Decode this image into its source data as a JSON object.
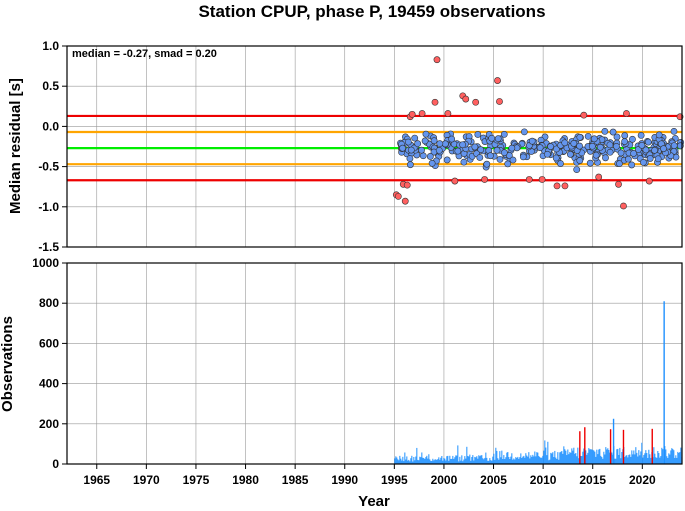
{
  "chart_data": [
    {
      "type": "scatter",
      "title": "Station CPUP, phase P, 19459 observations",
      "ylabel": "Median residual [s]",
      "xlim": [
        1962,
        2024
      ],
      "ylim": [
        -1.5,
        1.0
      ],
      "yticks": [
        "1.0",
        "0.5",
        "0.0",
        "-0.5",
        "-1.0",
        "-1.5"
      ],
      "ytick_values": [
        1.0,
        0.5,
        0.0,
        -0.5,
        -1.0,
        -1.5
      ],
      "annotation": "median = -0.27, smad = 0.20",
      "grid": true,
      "reference_lines": [
        {
          "y": -0.27,
          "color": "#00ee00"
        },
        {
          "y": -0.07,
          "color": "#ffa500"
        },
        {
          "y": -0.47,
          "color": "#ffa500"
        },
        {
          "y": 0.13,
          "color": "#ee0000"
        },
        {
          "y": -0.67,
          "color": "#ee0000"
        }
      ],
      "colors": {
        "inlier": "#6495ed",
        "outlier": "#ff6060",
        "outline": "#333333"
      },
      "outliers": [
        [
          1995.2,
          -0.85
        ],
        [
          1995.4,
          -0.87
        ],
        [
          1995.9,
          -0.72
        ],
        [
          1996.1,
          -0.93
        ],
        [
          1996.3,
          -0.73
        ],
        [
          1996.6,
          0.12
        ],
        [
          1996.8,
          0.15
        ],
        [
          1997.8,
          0.16
        ],
        [
          1999.1,
          0.3
        ],
        [
          1999.3,
          0.83
        ],
        [
          2000.4,
          0.16
        ],
        [
          2001.1,
          -0.68
        ],
        [
          2001.9,
          0.38
        ],
        [
          2002.2,
          0.34
        ],
        [
          2003.2,
          0.3
        ],
        [
          2004.1,
          -0.66
        ],
        [
          2005.4,
          0.57
        ],
        [
          2005.6,
          0.31
        ],
        [
          2008.6,
          -0.66
        ],
        [
          2009.9,
          -0.66
        ],
        [
          2011.4,
          -0.74
        ],
        [
          2012.2,
          -0.74
        ],
        [
          2014.1,
          0.14
        ],
        [
          2015.6,
          -0.63
        ],
        [
          2017.6,
          -0.72
        ],
        [
          2018.1,
          -0.99
        ],
        [
          2018.4,
          0.16
        ],
        [
          2020.7,
          -0.68
        ],
        [
          2023.8,
          0.12
        ]
      ]
    },
    {
      "type": "bar",
      "ylabel": "Observations",
      "xlabel": "Year",
      "xlim": [
        1962,
        2024
      ],
      "ylim": [
        0,
        1000
      ],
      "xticks": [
        "1965",
        "1970",
        "1975",
        "1980",
        "1985",
        "1990",
        "1995",
        "2000",
        "2005",
        "2010",
        "2015",
        "2020"
      ],
      "xtick_values": [
        1965,
        1970,
        1975,
        1980,
        1985,
        1990,
        1995,
        2000,
        2005,
        2010,
        2015,
        2020
      ],
      "yticks": [
        "1000",
        "800",
        "600",
        "400",
        "200",
        "0"
      ],
      "ytick_values": [
        1000,
        800,
        600,
        400,
        200,
        0
      ],
      "grid": true,
      "colors": {
        "bars": "#1e90ff",
        "outlier_bars": "#ee0000"
      },
      "x_range": [
        1995.0,
        2024.0
      ],
      "peaks": [
        [
          2022.2,
          810
        ],
        [
          2017.1,
          225
        ],
        [
          2014.2,
          183
        ],
        [
          2021.0,
          175
        ],
        [
          2016.8,
          173
        ],
        [
          2013.7,
          163
        ],
        [
          2018.1,
          170
        ]
      ]
    }
  ]
}
